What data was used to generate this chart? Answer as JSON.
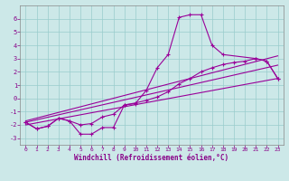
{
  "xlabel": "Windchill (Refroidissement éolien,°C)",
  "bg_color": "#cce8e8",
  "grid_color": "#99cccc",
  "line_color": "#990099",
  "tick_color": "#880088",
  "xlim": [
    -0.5,
    23.5
  ],
  "ylim": [
    -3.5,
    7.0
  ],
  "xticks": [
    0,
    1,
    2,
    3,
    4,
    5,
    6,
    7,
    8,
    9,
    10,
    11,
    12,
    13,
    14,
    15,
    16,
    17,
    18,
    19,
    20,
    21,
    22,
    23
  ],
  "yticks": [
    -3,
    -2,
    -1,
    0,
    1,
    2,
    3,
    4,
    5,
    6
  ],
  "series_main": {
    "x": [
      0,
      1,
      2,
      3,
      4,
      5,
      6,
      7,
      8,
      9,
      10,
      11,
      12,
      13,
      14,
      15,
      16,
      17,
      18,
      21,
      22,
      23
    ],
    "y": [
      -1.8,
      -2.3,
      -2.1,
      -1.5,
      -1.7,
      -2.7,
      -2.7,
      -2.2,
      -2.2,
      -0.5,
      -0.4,
      0.6,
      2.3,
      3.3,
      6.1,
      6.3,
      6.3,
      4.0,
      3.3,
      3.0,
      2.8,
      1.5
    ]
  },
  "series_smooth": {
    "x": [
      0,
      1,
      2,
      3,
      4,
      5,
      6,
      7,
      8,
      9,
      10,
      11,
      12,
      13,
      14,
      15,
      16,
      17,
      18,
      19,
      20,
      21,
      22,
      23
    ],
    "y": [
      -1.8,
      -2.3,
      -2.1,
      -1.5,
      -1.7,
      -2.0,
      -1.9,
      -1.4,
      -1.2,
      -0.5,
      -0.35,
      -0.15,
      0.1,
      0.5,
      1.1,
      1.5,
      2.0,
      2.3,
      2.55,
      2.7,
      2.8,
      3.0,
      2.8,
      1.5
    ]
  },
  "trend_low": {
    "x": [
      0,
      23
    ],
    "y": [
      -2.0,
      1.5
    ]
  },
  "trend_mid": {
    "x": [
      0,
      23
    ],
    "y": [
      -1.8,
      2.5
    ]
  },
  "trend_high": {
    "x": [
      0,
      23
    ],
    "y": [
      -1.7,
      3.2
    ]
  }
}
